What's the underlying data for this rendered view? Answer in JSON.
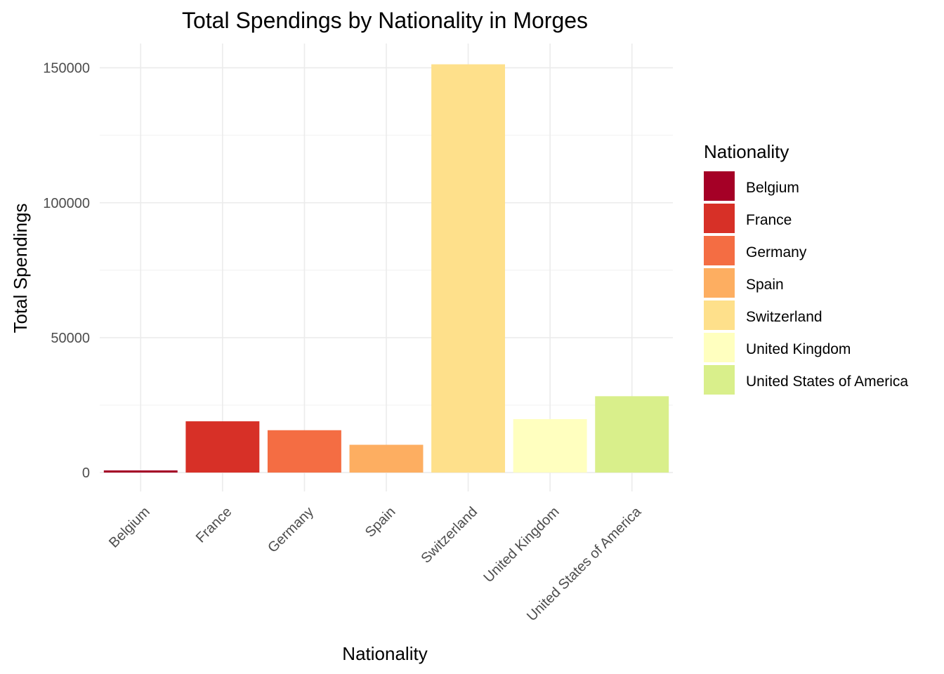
{
  "chart_data": {
    "type": "bar",
    "title": "Total Spendings by Nationality in Morges",
    "xlabel": "Nationality",
    "ylabel": "Total Spendings",
    "categories": [
      "Belgium",
      "France",
      "Germany",
      "Spain",
      "Switzerland",
      "United Kingdom",
      "United States of America"
    ],
    "values": [
      800,
      19000,
      15700,
      10300,
      151300,
      19800,
      28300
    ],
    "colors": [
      "#a50026",
      "#d73027",
      "#f46d43",
      "#fdae61",
      "#fee08b",
      "#ffffbf",
      "#d9ef8b"
    ],
    "ylim": [
      -7000,
      159000
    ],
    "yticks": [
      0,
      50000,
      100000,
      150000
    ],
    "ytick_labels": [
      "0",
      "50000",
      "100000",
      "150000"
    ],
    "grid": true,
    "legend": {
      "title": "Nationality",
      "placement": "right",
      "items": [
        "Belgium",
        "France",
        "Germany",
        "Spain",
        "Switzerland",
        "United Kingdom",
        "United States of America"
      ]
    }
  }
}
